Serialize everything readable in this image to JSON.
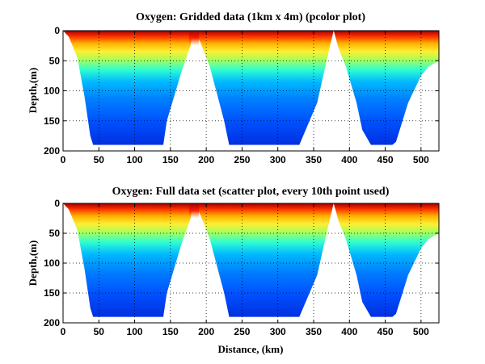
{
  "chart_data": [
    {
      "type": "heatmap",
      "title": "Oxygen: Gridded data (1km x 4m) (pcolor plot)",
      "xlabel": "",
      "ylabel": "Depth,(m)",
      "xlim": [
        0,
        525
      ],
      "ylim": [
        200,
        0
      ],
      "xticks": [
        "0",
        "50",
        "100",
        "150",
        "200",
        "250",
        "300",
        "350",
        "400",
        "450",
        "500"
      ],
      "yticks": [
        "0",
        "50",
        "100",
        "150",
        "200"
      ],
      "grid": true,
      "colormap": "jet",
      "bottom_profile_km": [
        0,
        8,
        20,
        30,
        38,
        42,
        60,
        100,
        140,
        145,
        165,
        178,
        180,
        185,
        188,
        192,
        205,
        225,
        232,
        240,
        300,
        320,
        330,
        355,
        370,
        378,
        385,
        395,
        410,
        418,
        430,
        460,
        465,
        482,
        500,
        510,
        525
      ],
      "bottom_profile_depth": [
        0,
        10,
        45,
        110,
        175,
        190,
        190,
        190,
        190,
        150,
        70,
        25,
        10,
        0,
        10,
        20,
        60,
        150,
        190,
        190,
        190,
        190,
        190,
        120,
        40,
        0,
        30,
        60,
        120,
        165,
        190,
        190,
        185,
        120,
        75,
        60,
        50
      ]
    },
    {
      "type": "scatter",
      "title": "Oxygen: Full data set (scatter plot, every 10th point used)",
      "xlabel": "Distance, (km)",
      "ylabel": "Depth,(m)",
      "xlim": [
        0,
        525
      ],
      "ylim": [
        200,
        0
      ],
      "xticks": [
        "0",
        "50",
        "100",
        "150",
        "200",
        "250",
        "300",
        "350",
        "400",
        "450",
        "500"
      ],
      "yticks": [
        "0",
        "50",
        "100",
        "150",
        "200"
      ],
      "grid": true,
      "colormap": "jet",
      "bottom_profile_km": [
        0,
        8,
        20,
        30,
        38,
        42,
        60,
        100,
        140,
        145,
        165,
        178,
        180,
        185,
        188,
        192,
        205,
        225,
        232,
        240,
        300,
        320,
        330,
        355,
        370,
        378,
        385,
        395,
        410,
        418,
        430,
        460,
        465,
        482,
        500,
        510,
        525
      ],
      "bottom_profile_depth": [
        0,
        10,
        45,
        110,
        175,
        190,
        190,
        190,
        190,
        150,
        70,
        25,
        10,
        0,
        10,
        20,
        60,
        150,
        190,
        190,
        190,
        190,
        190,
        120,
        40,
        0,
        30,
        60,
        120,
        165,
        190,
        190,
        185,
        120,
        75,
        60,
        50
      ]
    }
  ]
}
